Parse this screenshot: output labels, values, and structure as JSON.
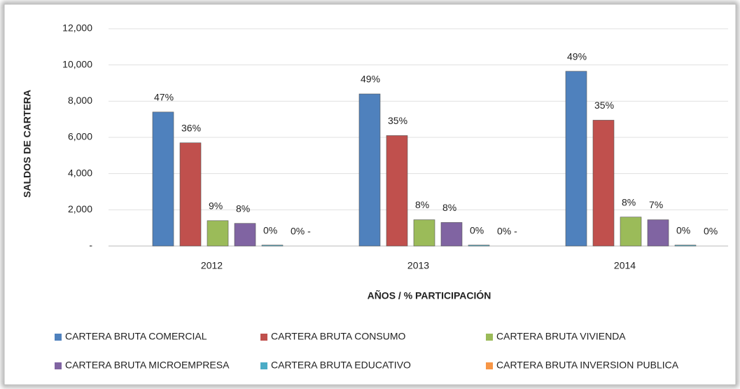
{
  "chart_data": {
    "type": "bar",
    "x_label": "AÑOS / % PARTICIPACIÓN",
    "y_label": "SALDOS  DE CARTERA",
    "categories": [
      "2012",
      "2013",
      "2014"
    ],
    "series": [
      {
        "name": "CARTERA BRUTA COMERCIAL",
        "color": "#4f81bd",
        "values": [
          7400,
          8400,
          9650
        ],
        "share_labels": [
          "47%",
          "49%",
          "49%"
        ]
      },
      {
        "name": "CARTERA BRUTA CONSUMO",
        "color": "#c0504d",
        "values": [
          5700,
          6100,
          6950
        ],
        "share_labels": [
          "36%",
          "35%",
          "35%"
        ]
      },
      {
        "name": "CARTERA BRUTA VIVIENDA",
        "color": "#9bbb59",
        "values": [
          1400,
          1450,
          1600
        ],
        "share_labels": [
          "9%",
          "8%",
          "8%"
        ]
      },
      {
        "name": "CARTERA BRUTA MICROEMPRESA",
        "color": "#8064a2",
        "values": [
          1250,
          1300,
          1450
        ],
        "share_labels": [
          "8%",
          "8%",
          "7%"
        ]
      },
      {
        "name": "CARTERA BRUTA EDUCATIVO",
        "color": "#4bacc6",
        "values": [
          50,
          50,
          50
        ],
        "share_labels": [
          "0%",
          "0%",
          "0%"
        ]
      },
      {
        "name": "CARTERA BRUTA INVERSION PUBLICA",
        "color": "#f79646",
        "values": [
          0,
          0,
          0
        ],
        "share_labels": [
          "0% -",
          "0% -",
          "0%"
        ]
      }
    ],
    "ylim": [
      0,
      12000
    ],
    "yticks": [
      {
        "value": 0,
        "label": "-"
      },
      {
        "value": 2000,
        "label": "2,000"
      },
      {
        "value": 4000,
        "label": "4,000"
      },
      {
        "value": 6000,
        "label": "6,000"
      },
      {
        "value": 8000,
        "label": "8,000"
      },
      {
        "value": 10000,
        "label": "10,000"
      },
      {
        "value": 12000,
        "label": "12,000"
      }
    ],
    "grid": true,
    "legend": "bottom"
  }
}
